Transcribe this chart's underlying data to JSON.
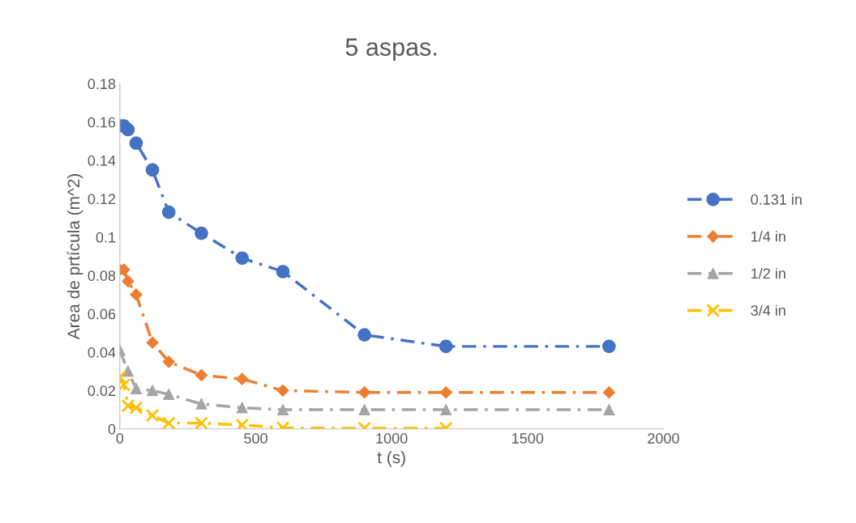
{
  "chart_data": {
    "type": "line",
    "title": "5 aspas.",
    "xlabel": "t (s)",
    "ylabel": "Area de prtícula (m^2)",
    "xlim": [
      0,
      2000
    ],
    "xticks": [
      0,
      500,
      1000,
      1500,
      2000
    ],
    "ylim": [
      0,
      0.18
    ],
    "yticks": [
      0,
      0.02,
      0.04,
      0.06,
      0.08,
      0.1,
      0.12,
      0.14,
      0.16,
      0.18
    ],
    "grid": false,
    "legend": "right",
    "line_style": "dashed",
    "series": [
      {
        "name": "0.131 in",
        "color": "#4472c4",
        "marker": "circle",
        "x": [
          0,
          15,
          30,
          60,
          120,
          180,
          300,
          450,
          600,
          900,
          1200,
          1800
        ],
        "values": [
          0.158,
          0.158,
          0.156,
          0.149,
          0.135,
          0.113,
          0.102,
          0.089,
          0.082,
          0.049,
          0.043,
          0.043
        ]
      },
      {
        "name": "1/4 in",
        "color": "#ed7d31",
        "marker": "diamond",
        "x": [
          0,
          15,
          30,
          60,
          120,
          180,
          300,
          450,
          600,
          900,
          1200,
          1800
        ],
        "values": [
          0.083,
          0.083,
          0.077,
          0.07,
          0.045,
          0.035,
          0.028,
          0.026,
          0.02,
          0.019,
          0.019,
          0.019
        ]
      },
      {
        "name": "1/2 in",
        "color": "#a5a5a5",
        "marker": "triangle",
        "x": [
          0,
          30,
          60,
          120,
          180,
          300,
          450,
          600,
          900,
          1200,
          1800
        ],
        "values": [
          0.041,
          0.03,
          0.021,
          0.02,
          0.018,
          0.013,
          0.011,
          0.01,
          0.01,
          0.01,
          0.01
        ]
      },
      {
        "name": "3/4 in",
        "color": "#ffc000",
        "marker": "cross",
        "x": [
          0,
          15,
          30,
          60,
          120,
          180,
          300,
          450,
          600,
          900,
          1200
        ],
        "values": [
          0.027,
          0.023,
          0.012,
          0.011,
          0.007,
          0.003,
          0.003,
          0.002,
          0.0005,
          0.0003,
          0.0003
        ]
      }
    ]
  }
}
